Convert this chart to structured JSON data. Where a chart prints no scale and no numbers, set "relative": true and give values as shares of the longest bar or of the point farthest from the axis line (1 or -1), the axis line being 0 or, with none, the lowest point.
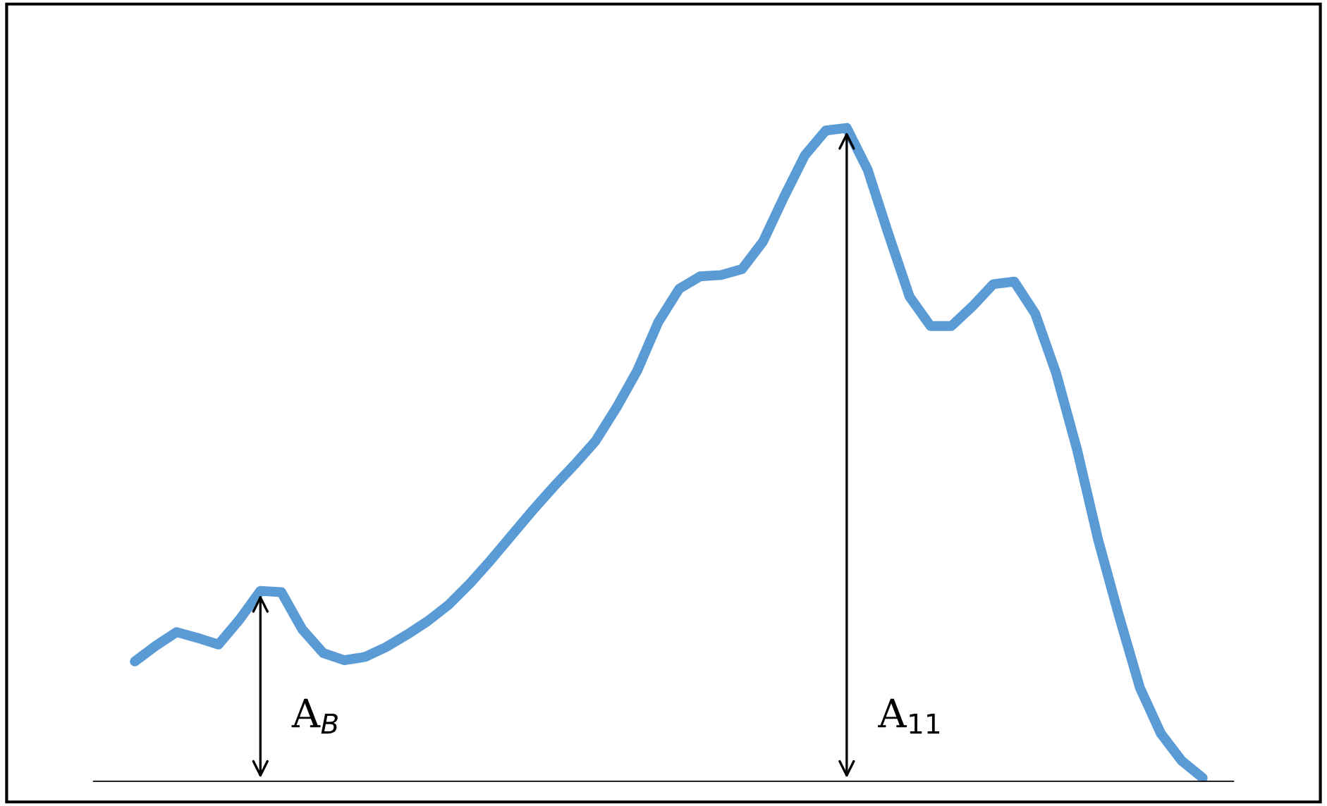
{
  "chart_data": {
    "type": "line",
    "relative": true,
    "categories": [
      null,
      null,
      null,
      null,
      null,
      null,
      null,
      null,
      null,
      null,
      null,
      null,
      null,
      null,
      null,
      null,
      null,
      null,
      null,
      null,
      null,
      null,
      null,
      null,
      null,
      null,
      null,
      null,
      null,
      null,
      null,
      null,
      null,
      null,
      null,
      null,
      null,
      null,
      null,
      null,
      null,
      null,
      null,
      null,
      null,
      null,
      null,
      null,
      null,
      null,
      null,
      null
    ],
    "series": [
      {
        "color": "#5b9bd5",
        "values": [
          0.184,
          0.208,
          0.229,
          0.22,
          0.21,
          0.248,
          0.292,
          0.29,
          0.233,
          0.197,
          0.186,
          0.191,
          0.206,
          0.225,
          0.246,
          0.271,
          0.303,
          0.339,
          0.377,
          0.415,
          0.451,
          0.485,
          0.521,
          0.572,
          0.629,
          0.703,
          0.754,
          0.773,
          0.775,
          0.784,
          0.826,
          0.894,
          0.958,
          0.996,
          1.0,
          0.936,
          0.837,
          0.742,
          0.697,
          0.697,
          0.727,
          0.761,
          0.765,
          0.716,
          0.625,
          0.508,
          0.371,
          0.254,
          0.144,
          0.074,
          0.032,
          0.006
        ]
      }
    ],
    "annotations": [
      "A$_{B}$",
      "A$_{11}$"
    ],
    "grid": false,
    "legend": false,
    "marker": "none",
    "line_style": "solid"
  }
}
